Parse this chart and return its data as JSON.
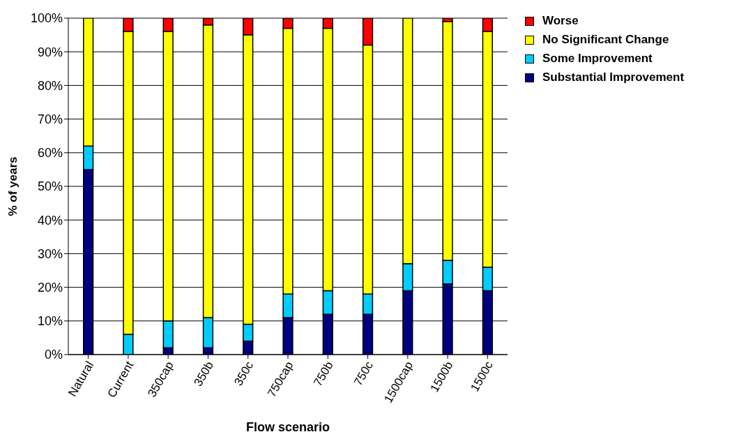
{
  "chart_data": {
    "type": "bar",
    "stacked": true,
    "xlabel": "Flow scenario",
    "ylabel": "% of years",
    "categories": [
      "Natural",
      "Current",
      "350cap",
      "350b",
      "350c",
      "750cap",
      "750b",
      "750c",
      "1500cap",
      "1500b",
      "1500c"
    ],
    "series": [
      {
        "name": "Substantial Improvement",
        "color": "#000080",
        "values": [
          55,
          0,
          2,
          2,
          4,
          11,
          12,
          12,
          19,
          21,
          19
        ]
      },
      {
        "name": "Some Improvement",
        "color": "#00ccff",
        "values": [
          7,
          6,
          8,
          9,
          5,
          7,
          7,
          6,
          8,
          7,
          7
        ]
      },
      {
        "name": "No Significant Change",
        "color": "#ffff00",
        "values": [
          38,
          90,
          86,
          87,
          86,
          79,
          78,
          74,
          73,
          71,
          70
        ]
      },
      {
        "name": "Worse",
        "color": "#ff0000",
        "values": [
          0,
          4,
          4,
          2,
          5,
          3,
          3,
          8,
          0,
          1,
          4
        ]
      }
    ],
    "ylim": [
      0,
      100
    ],
    "yticks": [
      {
        "value": 0,
        "label": "0%"
      },
      {
        "value": 10,
        "label": "10%"
      },
      {
        "value": 20,
        "label": "20%"
      },
      {
        "value": 30,
        "label": "30%"
      },
      {
        "value": 40,
        "label": "40%"
      },
      {
        "value": 50,
        "label": "50%"
      },
      {
        "value": 60,
        "label": "60%"
      },
      {
        "value": 70,
        "label": "70%"
      },
      {
        "value": 80,
        "label": "80%"
      },
      {
        "value": 90,
        "label": "90%"
      },
      {
        "value": 100,
        "label": "100%"
      }
    ],
    "grid": "y",
    "legend": "top right"
  }
}
